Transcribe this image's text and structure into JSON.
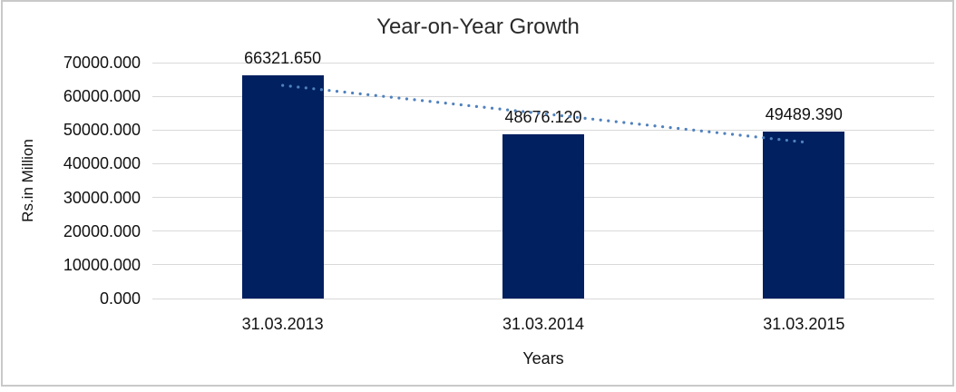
{
  "chart_data": {
    "type": "bar",
    "title": "Year-on-Year Growth",
    "xlabel": "Years",
    "ylabel": "Rs.in Million",
    "categories": [
      "31.03.2013",
      "31.03.2014",
      "31.03.2015"
    ],
    "values": [
      66321.65,
      48676.12,
      49489.39
    ],
    "data_labels": [
      "66321.650",
      "48676.120",
      "49489.390"
    ],
    "ylim": [
      0,
      70000
    ],
    "ytick_step": 10000,
    "ytick_labels": [
      "0.000",
      "10000.000",
      "20000.000",
      "30000.000",
      "40000.000",
      "50000.000",
      "60000.000",
      "70000.000"
    ],
    "grid": "horizontal",
    "legend": "none",
    "bar_color": "#002060",
    "frame_border_color": "#c9c9c9",
    "gridline_color": "#d9d9d9",
    "trendline": {
      "type": "linear",
      "style": "dotted",
      "color": "#4F81BD"
    }
  }
}
